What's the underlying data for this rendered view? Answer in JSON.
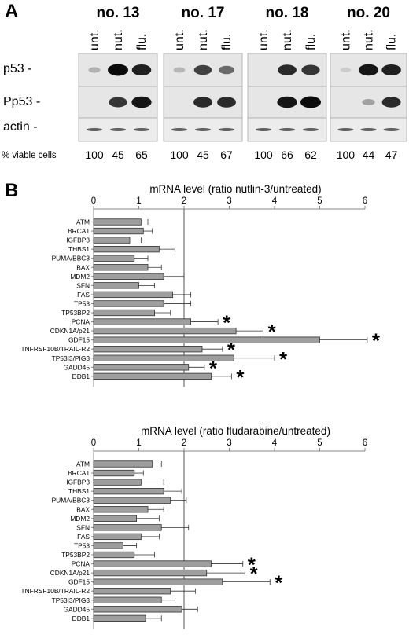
{
  "panel_a": {
    "letter": "A",
    "samples": [
      {
        "name": "no. 13",
        "viable": [
          "100",
          "45",
          "65"
        ],
        "bands": {
          "p53": [
            0.22,
            1.0,
            0.9
          ],
          "Pp53": [
            0.0,
            0.8,
            0.95
          ],
          "actin": [
            0.6,
            0.6,
            0.6
          ]
        }
      },
      {
        "name": "no. 17",
        "viable": [
          "100",
          "45",
          "67"
        ],
        "bands": {
          "p53": [
            0.2,
            0.75,
            0.55
          ],
          "Pp53": [
            0.0,
            0.85,
            0.85
          ],
          "actin": [
            0.6,
            0.6,
            0.6
          ]
        }
      },
      {
        "name": "no. 18",
        "viable": [
          "100",
          "66",
          "62"
        ],
        "bands": {
          "p53": [
            0.0,
            0.85,
            0.8
          ],
          "Pp53": [
            0.0,
            0.95,
            1.0
          ],
          "actin": [
            0.6,
            0.6,
            0.6
          ]
        }
      },
      {
        "name": "no. 20",
        "viable": [
          "100",
          "44",
          "47"
        ],
        "bands": {
          "p53": [
            0.1,
            0.95,
            0.9
          ],
          "Pp53": [
            0.0,
            0.3,
            0.85
          ],
          "actin": [
            0.6,
            0.6,
            0.6
          ]
        }
      }
    ],
    "lanes": [
      "unt.",
      "nut.",
      "flu."
    ],
    "rows": [
      "p53 -",
      "Pp53 -",
      "actin -"
    ],
    "viable_label": "% viable cells"
  },
  "panel_b": {
    "letter": "B"
  },
  "chart_data": [
    {
      "type": "bar",
      "orientation": "horizontal",
      "title": "mRNA level (ratio nutlin-3/untreated)",
      "xlim": [
        0,
        6
      ],
      "xticks": [
        "0",
        "1",
        "2",
        "3",
        "4",
        "5",
        "6"
      ],
      "reference_line": 2,
      "categories": [
        "ATM",
        "BRCA1",
        "IGFBP3",
        "THBS1",
        "PUMA/BBC3",
        "BAX",
        "MDM2",
        "SFN",
        "FAS",
        "TP53",
        "TP53BP2",
        "PCNA",
        "CDKN1A/p21",
        "GDF15",
        "TNFRSF10B/TRAIL-R2",
        "TP53I3/PIG3",
        "GADD45",
        "DDB1"
      ],
      "values": [
        1.05,
        1.1,
        0.8,
        1.45,
        0.9,
        1.2,
        1.55,
        1.0,
        1.75,
        1.55,
        1.35,
        2.15,
        3.15,
        5.0,
        2.4,
        3.1,
        2.1,
        2.6
      ],
      "errors": [
        0.15,
        0.2,
        0.25,
        0.35,
        0.3,
        0.3,
        0.45,
        0.35,
        0.4,
        0.6,
        0.35,
        0.6,
        0.6,
        1.05,
        0.45,
        0.9,
        0.35,
        0.45
      ],
      "significant_marker": "*",
      "significant": [
        false,
        false,
        false,
        false,
        false,
        false,
        false,
        false,
        false,
        false,
        false,
        true,
        true,
        true,
        true,
        true,
        true,
        true
      ]
    },
    {
      "type": "bar",
      "orientation": "horizontal",
      "title": "mRNA level (ratio fludarabine/untreated)",
      "xlim": [
        0,
        6
      ],
      "xticks": [
        "0",
        "1",
        "2",
        "3",
        "4",
        "5",
        "6"
      ],
      "reference_line": 2,
      "categories": [
        "ATM",
        "BRCA1",
        "IGFBP3",
        "THBS1",
        "PUMA/BBC3",
        "BAX",
        "MDM2",
        "SFN",
        "FAS",
        "TP53",
        "TP53BP2",
        "PCNA",
        "CDKN1A/p21",
        "GDF15",
        "TNFRSF10B/TRAIL-R2",
        "TP53I3/PIG3",
        "GADD45",
        "DDB1"
      ],
      "values": [
        1.3,
        0.9,
        1.05,
        1.55,
        1.7,
        1.2,
        0.95,
        1.5,
        1.05,
        0.65,
        0.9,
        2.6,
        2.5,
        2.85,
        1.7,
        1.5,
        1.95,
        1.15
      ],
      "errors": [
        0.2,
        0.2,
        0.5,
        0.4,
        0.35,
        0.35,
        0.5,
        0.6,
        0.4,
        0.3,
        0.45,
        0.7,
        0.85,
        1.05,
        0.55,
        0.3,
        0.35,
        0.35
      ],
      "significant_marker": "*",
      "significant": [
        false,
        false,
        false,
        false,
        false,
        false,
        false,
        false,
        false,
        false,
        false,
        true,
        true,
        true,
        false,
        false,
        false,
        false
      ]
    }
  ]
}
